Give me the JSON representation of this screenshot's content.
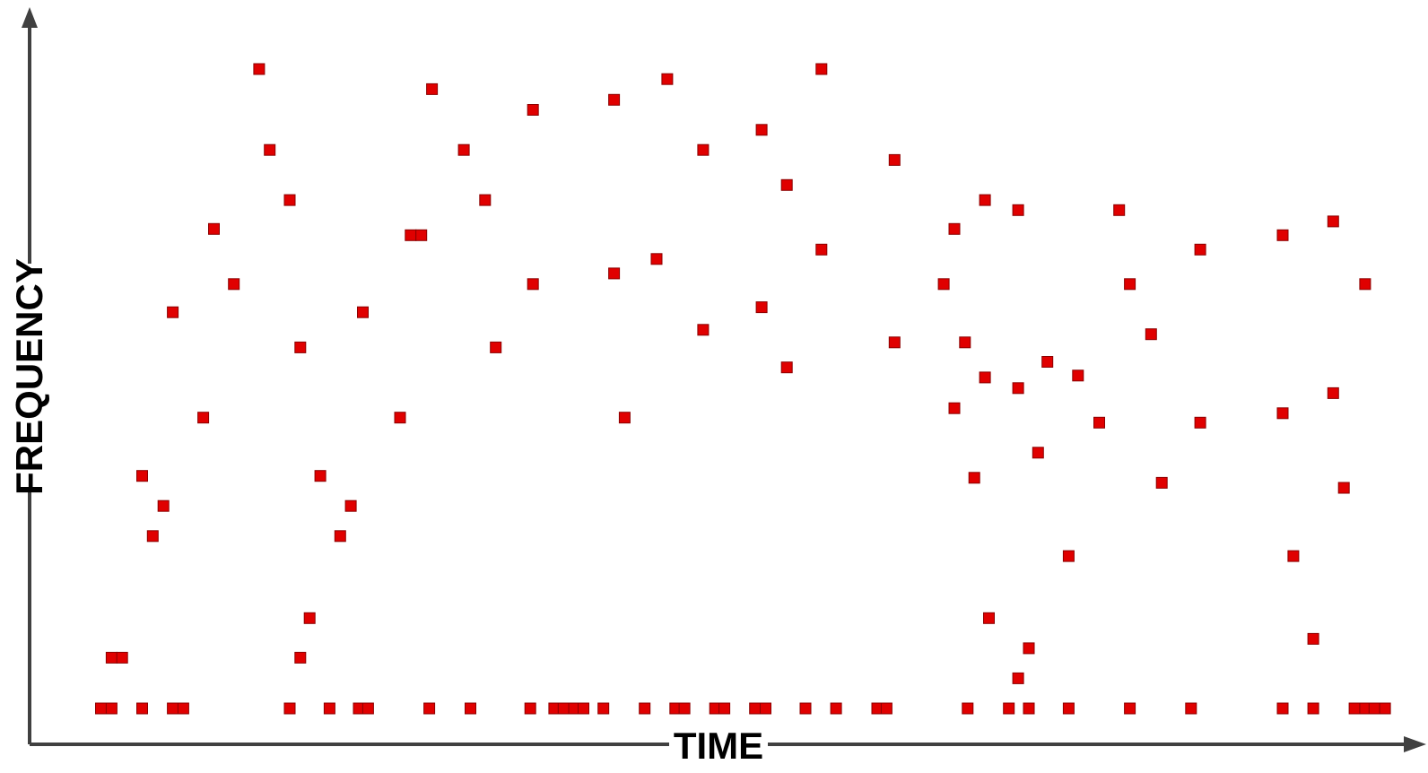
{
  "chart_data": {
    "type": "scatter",
    "title": "",
    "xlabel": "TIME",
    "ylabel": "FREQUENCY",
    "ticks": false,
    "grid": false,
    "legend": "none",
    "colors": {
      "marker": "#e00000",
      "marker_border": "#8b0000",
      "axis": "#404040"
    },
    "xlim": [
      0,
      100
    ],
    "ylim": [
      0,
      100
    ],
    "series": [
      {
        "points": [
          [
            2.6,
            0
          ],
          [
            3.4,
            0
          ],
          [
            5.7,
            0
          ],
          [
            8.0,
            0
          ],
          [
            8.8,
            0
          ],
          [
            16.8,
            0
          ],
          [
            19.8,
            0
          ],
          [
            22.0,
            0
          ],
          [
            22.7,
            0
          ],
          [
            27.3,
            0
          ],
          [
            30.4,
            0
          ],
          [
            34.9,
            0
          ],
          [
            36.7,
            0
          ],
          [
            37.4,
            0
          ],
          [
            38.2,
            0
          ],
          [
            38.9,
            0
          ],
          [
            40.4,
            0
          ],
          [
            43.5,
            0
          ],
          [
            45.8,
            0
          ],
          [
            46.5,
            0
          ],
          [
            48.8,
            0
          ],
          [
            49.5,
            0
          ],
          [
            51.8,
            0
          ],
          [
            52.6,
            0
          ],
          [
            55.6,
            0
          ],
          [
            57.9,
            0
          ],
          [
            61.0,
            0
          ],
          [
            61.7,
            0
          ],
          [
            67.8,
            0
          ],
          [
            70.9,
            0
          ],
          [
            72.4,
            0
          ],
          [
            75.4,
            0
          ],
          [
            80.0,
            0
          ],
          [
            84.6,
            0
          ],
          [
            91.5,
            0
          ],
          [
            93.8,
            0
          ],
          [
            96.9,
            0
          ],
          [
            97.7,
            0
          ],
          [
            98.4,
            0
          ],
          [
            99.2,
            0
          ],
          [
            3.4,
            8.1
          ],
          [
            4.2,
            8.1
          ],
          [
            17.6,
            8.1
          ],
          [
            71.6,
            4.8
          ],
          [
            72.4,
            9.6
          ],
          [
            18.3,
            14.4
          ],
          [
            69.4,
            14.4
          ],
          [
            93.8,
            11.1
          ],
          [
            5.7,
            37.1
          ],
          [
            6.5,
            27.5
          ],
          [
            7.3,
            32.3
          ],
          [
            8.0,
            63.2
          ],
          [
            10.3,
            46.4
          ],
          [
            11.1,
            76.5
          ],
          [
            12.6,
            67.7
          ],
          [
            14.5,
            102.0
          ],
          [
            15.3,
            89.1
          ],
          [
            16.8,
            81.1
          ],
          [
            17.6,
            57.6
          ],
          [
            19.1,
            37.1
          ],
          [
            20.6,
            27.5
          ],
          [
            21.4,
            32.3
          ],
          [
            22.3,
            63.2
          ],
          [
            25.1,
            46.4
          ],
          [
            25.9,
            75.5
          ],
          [
            26.7,
            75.5
          ],
          [
            27.5,
            98.8
          ],
          [
            29.9,
            89.1
          ],
          [
            31.5,
            81.1
          ],
          [
            32.3,
            57.6
          ],
          [
            35.1,
            95.5
          ],
          [
            35.1,
            67.7
          ],
          [
            41.2,
            97.1
          ],
          [
            41.2,
            69.4
          ],
          [
            42.0,
            46.4
          ],
          [
            44.4,
            71.7
          ],
          [
            45.2,
            100.4
          ],
          [
            47.9,
            89.1
          ],
          [
            47.9,
            60.4
          ],
          [
            52.3,
            92.3
          ],
          [
            52.3,
            64.0
          ],
          [
            54.2,
            83.5
          ],
          [
            54.2,
            54.4
          ],
          [
            56.8,
            102.0
          ],
          [
            56.8,
            73.2
          ],
          [
            62.3,
            87.5
          ],
          [
            62.3,
            58.4
          ],
          [
            66.0,
            67.7
          ],
          [
            66.8,
            76.5
          ],
          [
            66.8,
            47.9
          ],
          [
            67.6,
            58.4
          ],
          [
            68.3,
            36.8
          ],
          [
            69.1,
            81.1
          ],
          [
            69.1,
            52.8
          ],
          [
            71.6,
            79.5
          ],
          [
            71.6,
            51.1
          ],
          [
            73.1,
            40.8
          ],
          [
            73.8,
            55.3
          ],
          [
            75.4,
            24.3
          ],
          [
            76.1,
            53.1
          ],
          [
            77.7,
            45.6
          ],
          [
            79.2,
            79.5
          ],
          [
            80.0,
            67.7
          ],
          [
            81.6,
            59.7
          ],
          [
            82.4,
            36.0
          ],
          [
            85.3,
            73.2
          ],
          [
            85.3,
            45.6
          ],
          [
            91.5,
            75.5
          ],
          [
            91.5,
            47.1
          ],
          [
            92.3,
            24.3
          ],
          [
            95.3,
            77.7
          ],
          [
            95.3,
            50.3
          ],
          [
            96.1,
            35.2
          ],
          [
            97.7,
            67.7
          ]
        ]
      }
    ]
  }
}
